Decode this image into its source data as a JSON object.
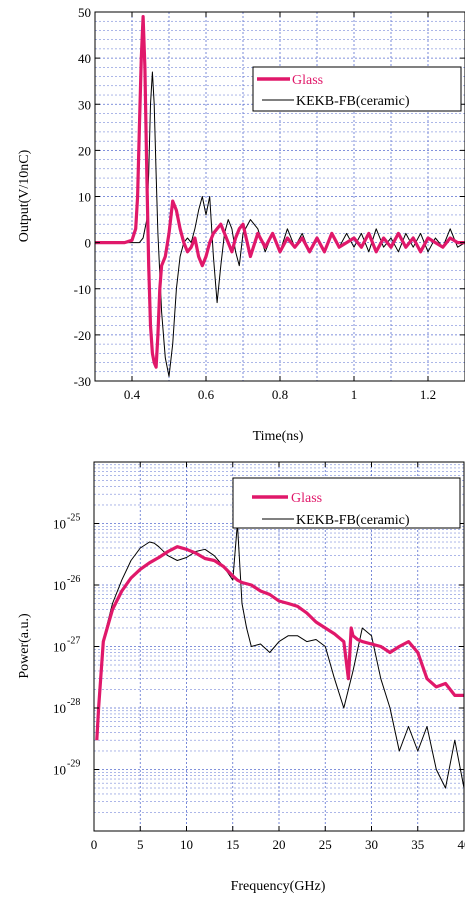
{
  "chart_data": [
    {
      "type": "line",
      "xlabel": "Time(ns)",
      "ylabel": "Output(V/10nC)",
      "xlim": [
        0.3,
        1.3
      ],
      "ylim": [
        -30,
        50
      ],
      "xticks": [
        0.4,
        0.6,
        0.8,
        1,
        1.2
      ],
      "xtick_labels": [
        "0.4",
        "0.6",
        "0.8",
        "1",
        "1.2"
      ],
      "yticks": [
        -30,
        -20,
        -10,
        0,
        10,
        20,
        30,
        40,
        50
      ],
      "ytick_labels": [
        "-30",
        "-20",
        "-10",
        "0",
        "10",
        "20",
        "30",
        "40",
        "50"
      ],
      "grid": true,
      "legend_position": "top-right",
      "series": [
        {
          "name": "Glass",
          "color": "#e0186a",
          "x": [
            0.3,
            0.34,
            0.38,
            0.4,
            0.41,
            0.415,
            0.42,
            0.425,
            0.43,
            0.435,
            0.44,
            0.445,
            0.45,
            0.455,
            0.46,
            0.465,
            0.47,
            0.475,
            0.48,
            0.49,
            0.5,
            0.51,
            0.52,
            0.53,
            0.54,
            0.55,
            0.56,
            0.57,
            0.58,
            0.59,
            0.6,
            0.61,
            0.62,
            0.63,
            0.64,
            0.65,
            0.66,
            0.67,
            0.68,
            0.69,
            0.7,
            0.72,
            0.74,
            0.76,
            0.78,
            0.8,
            0.82,
            0.84,
            0.86,
            0.88,
            0.9,
            0.92,
            0.94,
            0.96,
            0.98,
            1.0,
            1.02,
            1.04,
            1.06,
            1.08,
            1.1,
            1.12,
            1.14,
            1.16,
            1.18,
            1.2,
            1.22,
            1.24,
            1.26,
            1.28,
            1.3
          ],
          "y": [
            0,
            0,
            0,
            0.5,
            3,
            10,
            25,
            40,
            49,
            38,
            15,
            -5,
            -18,
            -24,
            -26,
            -27,
            -20,
            -10,
            -5,
            -3,
            2,
            9,
            7,
            3,
            0,
            -2,
            -1,
            1,
            -3,
            -5,
            -3,
            0,
            2,
            3,
            4,
            2,
            0,
            -2,
            1,
            3,
            4,
            -3,
            2,
            -1,
            2,
            -2,
            1,
            -1,
            1,
            -2,
            1,
            -2,
            2,
            -1,
            0,
            1,
            -1,
            2,
            -2,
            1,
            -1,
            2,
            -1,
            1,
            -2,
            1,
            0,
            -1,
            1,
            0,
            0
          ]
        },
        {
          "name": "KEKB-FB(ceramic)",
          "color": "#000000",
          "x": [
            0.3,
            0.38,
            0.42,
            0.43,
            0.44,
            0.445,
            0.45,
            0.455,
            0.46,
            0.465,
            0.47,
            0.48,
            0.49,
            0.5,
            0.51,
            0.52,
            0.53,
            0.54,
            0.55,
            0.56,
            0.57,
            0.58,
            0.59,
            0.6,
            0.61,
            0.62,
            0.63,
            0.64,
            0.65,
            0.66,
            0.67,
            0.68,
            0.69,
            0.7,
            0.72,
            0.74,
            0.76,
            0.78,
            0.8,
            0.82,
            0.84,
            0.86,
            0.88,
            0.9,
            0.92,
            0.94,
            0.96,
            0.98,
            1.0,
            1.02,
            1.04,
            1.06,
            1.08,
            1.1,
            1.12,
            1.14,
            1.16,
            1.18,
            1.2,
            1.22,
            1.24,
            1.26,
            1.28,
            1.3
          ],
          "y": [
            0,
            0,
            0,
            1,
            5,
            15,
            30,
            37,
            30,
            15,
            2,
            -15,
            -25,
            -29,
            -22,
            -10,
            -3,
            0,
            1,
            0,
            3,
            7,
            10,
            6,
            10,
            -3,
            -13,
            -5,
            2,
            5,
            3,
            -2,
            -5,
            2,
            5,
            3,
            -2,
            2,
            -2,
            3,
            -1,
            2,
            -2,
            1,
            -2,
            2,
            -1,
            2,
            -1,
            2,
            -2,
            3,
            -1,
            1,
            -2,
            2,
            -1,
            2,
            -2,
            1,
            -1,
            3,
            -1,
            0
          ]
        }
      ]
    },
    {
      "type": "line",
      "xlabel": "Frequency(GHz)",
      "ylabel": "Power(a.u.)",
      "yscale": "log",
      "xlim": [
        0,
        40
      ],
      "ylim": [
        1e-30,
        1e-24
      ],
      "xticks": [
        0,
        5,
        10,
        15,
        20,
        25,
        30,
        35,
        40
      ],
      "xtick_labels": [
        "0",
        "5",
        "10",
        "15",
        "20",
        "25",
        "30",
        "35",
        "40"
      ],
      "yticks": [
        1e-29,
        1e-28,
        1e-27,
        1e-26,
        1e-25
      ],
      "ytick_labels": [
        "10-29",
        "10-28",
        "10-27",
        "10-26",
        "10-25"
      ],
      "grid": true,
      "legend_position": "top-right",
      "series": [
        {
          "name": "Glass",
          "color": "#e0186a",
          "x": [
            0.3,
            0.5,
            1,
            2,
            3,
            4,
            5,
            6,
            7,
            8,
            9,
            10,
            11,
            12,
            13,
            14,
            15,
            15.5,
            16,
            17,
            18,
            19,
            20,
            21,
            22,
            23,
            24,
            25,
            26,
            27,
            27.5,
            27.8,
            28,
            28.5,
            29,
            30,
            31,
            32,
            33,
            34,
            35,
            36,
            37,
            38,
            39,
            40
          ],
          "y": [
            3e-29,
            1e-28,
            1.2e-27,
            4e-27,
            8e-27,
            1.3e-26,
            1.8e-26,
            2.3e-26,
            2.8e-26,
            3.5e-26,
            4.2e-26,
            3.8e-26,
            3.3e-26,
            2.7e-26,
            2.5e-26,
            2e-26,
            1.4e-26,
            1.2e-26,
            1.1e-26,
            1e-26,
            8e-27,
            7e-27,
            5.5e-27,
            5e-27,
            4.5e-27,
            3.5e-27,
            2.5e-27,
            2e-27,
            1.6e-27,
            1.2e-27,
            3e-28,
            2e-27,
            1.5e-27,
            1.3e-27,
            1.2e-27,
            1.1e-27,
            1e-27,
            8e-28,
            1e-27,
            1.2e-27,
            8e-28,
            3e-28,
            2.2e-28,
            2.5e-28,
            1.6e-28,
            1.6e-28
          ]
        },
        {
          "name": "KEKB-FB(ceramic)",
          "color": "#000000",
          "x": [
            0.3,
            0.5,
            1,
            2,
            3,
            4,
            5,
            6,
            6.5,
            7,
            8,
            9,
            10,
            11,
            12,
            13,
            14,
            15,
            15.5,
            16,
            16.5,
            17,
            18,
            19,
            20,
            21,
            22,
            23,
            24,
            25,
            26,
            27,
            28,
            29,
            30,
            31,
            32,
            33,
            34,
            35,
            36,
            37,
            38,
            39,
            40
          ],
          "y": [
            3e-29,
            1e-28,
            1.3e-27,
            5e-27,
            1.2e-26,
            2.5e-26,
            4e-26,
            5e-26,
            4.8e-26,
            4.2e-26,
            3e-26,
            2.5e-26,
            2.8e-26,
            3.5e-26,
            3.8e-26,
            3e-26,
            2e-26,
            1.2e-26,
            1e-25,
            5e-27,
            2e-27,
            1e-27,
            1.1e-27,
            8e-28,
            1.2e-27,
            1.5e-27,
            1.5e-27,
            1.2e-27,
            1.3e-27,
            1e-27,
            3e-28,
            1e-28,
            4e-28,
            2e-27,
            1.5e-27,
            3e-28,
            1e-28,
            2e-29,
            5e-29,
            2e-29,
            5e-29,
            1e-29,
            5e-30,
            3e-29,
            5e-30
          ]
        }
      ]
    }
  ]
}
